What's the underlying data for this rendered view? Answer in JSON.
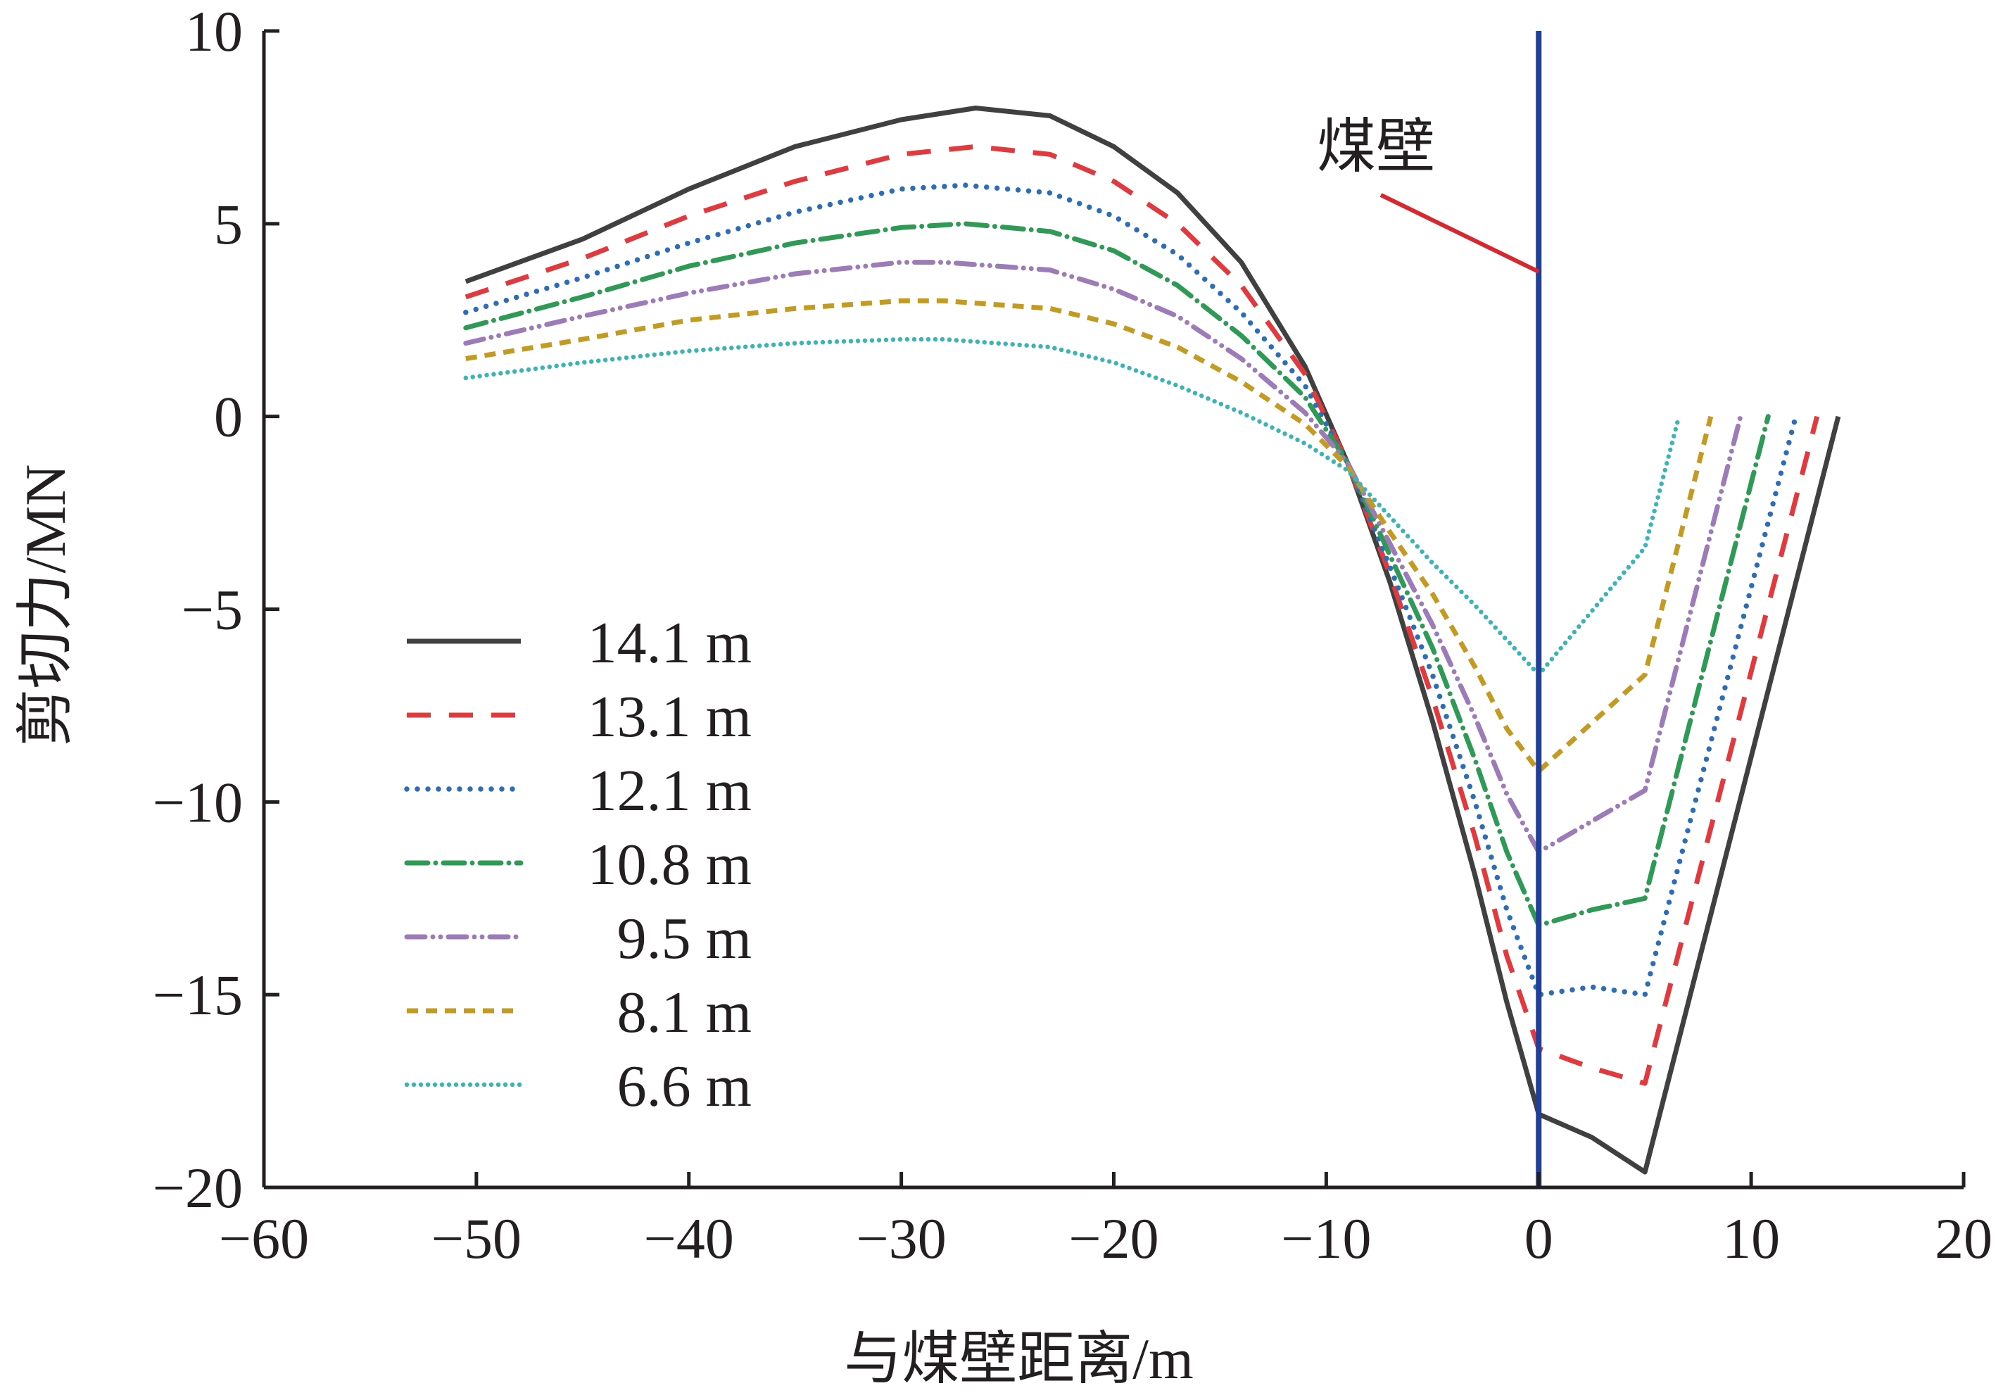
{
  "chart_data": {
    "type": "line",
    "xlabel": "与煤壁距离/m",
    "ylabel": "剪切力/MN",
    "xlim": [
      -60,
      20
    ],
    "ylim": [
      -20,
      10
    ],
    "xticks": [
      -60,
      -50,
      -40,
      -30,
      -20,
      -10,
      0,
      10,
      20
    ],
    "yticks": [
      -20,
      -15,
      -10,
      -5,
      0,
      5,
      10
    ],
    "xtick_labels": [
      "−60",
      "−50",
      "−40",
      "−30",
      "−20",
      "−10",
      "0",
      "10",
      "20"
    ],
    "ytick_labels": [
      "−20",
      "−15",
      "−10",
      "−5",
      "0",
      "5",
      "10"
    ],
    "grid": false,
    "legend_position": "lower-left",
    "annotation": {
      "text": "煤壁",
      "x": 0,
      "color": "#1f3f99",
      "pointer_color": "#d7282f"
    },
    "series": [
      {
        "name": "14.1 m",
        "color": "#404040",
        "dash": "solid",
        "x": [
          -50.5,
          -45,
          -40,
          -35,
          -30,
          -26.5,
          -23,
          -20,
          -17,
          -14,
          -11,
          -9,
          -7,
          -5,
          -3,
          -1.5,
          0,
          2.5,
          5,
          14.1
        ],
        "y": [
          3.5,
          4.6,
          5.9,
          7.0,
          7.7,
          8.0,
          7.8,
          7.0,
          5.8,
          4.0,
          1.3,
          -1.2,
          -4.3,
          -7.9,
          -11.9,
          -15.2,
          -18.1,
          -18.7,
          -19.6,
          0
        ]
      },
      {
        "name": "13.1 m",
        "color": "#e0393e",
        "dash": "dashed",
        "x": [
          -50.5,
          -45,
          -40,
          -35,
          -30,
          -26.5,
          -23,
          -20,
          -17,
          -14,
          -11,
          -9,
          -7,
          -5,
          -3,
          -1.5,
          0,
          2.5,
          5,
          13.1
        ],
        "y": [
          3.1,
          4.1,
          5.2,
          6.1,
          6.8,
          7.0,
          6.8,
          6.1,
          5.0,
          3.4,
          1.1,
          -1.2,
          -4.1,
          -7.3,
          -10.9,
          -14.0,
          -16.4,
          -16.9,
          -17.3,
          0
        ]
      },
      {
        "name": "12.1 m",
        "color": "#2c6db5",
        "dash": "dotted",
        "x": [
          -50.5,
          -45,
          -40,
          -35,
          -30,
          -27,
          -23,
          -20,
          -17,
          -14,
          -11,
          -9,
          -7,
          -5,
          -3,
          -1.5,
          0,
          2.5,
          5,
          12.1
        ],
        "y": [
          2.7,
          3.6,
          4.5,
          5.3,
          5.9,
          6.0,
          5.8,
          5.2,
          4.2,
          2.7,
          0.8,
          -1.2,
          -3.9,
          -6.7,
          -10.0,
          -12.8,
          -15.0,
          -14.8,
          -15.0,
          0
        ]
      },
      {
        "name": "10.8 m",
        "color": "#2f9a56",
        "dash": "dashdot",
        "x": [
          -50.5,
          -45,
          -40,
          -35,
          -30,
          -27,
          -23,
          -20,
          -17,
          -14,
          -11,
          -9,
          -7,
          -5,
          -3,
          -1.5,
          0,
          2.5,
          5,
          10.8
        ],
        "y": [
          2.3,
          3.1,
          3.9,
          4.5,
          4.9,
          5.0,
          4.8,
          4.3,
          3.4,
          2.1,
          0.5,
          -1.2,
          -3.6,
          -6.0,
          -8.9,
          -11.3,
          -13.2,
          -12.8,
          -12.5,
          0
        ]
      },
      {
        "name": "9.5 m",
        "color": "#9c7bb8",
        "dash": "dashdotdot",
        "x": [
          -50.5,
          -45,
          -40,
          -35,
          -30,
          -28,
          -23,
          -20,
          -17,
          -14,
          -11,
          -9,
          -7,
          -5,
          -3,
          -1.5,
          0,
          5,
          9.5
        ],
        "y": [
          1.9,
          2.6,
          3.2,
          3.7,
          4.0,
          4.0,
          3.8,
          3.3,
          2.6,
          1.5,
          0.1,
          -1.2,
          -3.3,
          -5.4,
          -7.8,
          -9.8,
          -11.3,
          -9.7,
          0
        ]
      },
      {
        "name": "8.1 m",
        "color": "#c39a22",
        "dash": "shortdash",
        "x": [
          -50.5,
          -45,
          -40,
          -35,
          -30,
          -28,
          -23,
          -20,
          -17,
          -14,
          -11,
          -9,
          -7,
          -5,
          -3,
          -1.5,
          0,
          5,
          8.1
        ],
        "y": [
          1.5,
          2.0,
          2.5,
          2.8,
          3.0,
          3.0,
          2.8,
          2.4,
          1.8,
          0.9,
          -0.2,
          -1.3,
          -3.0,
          -4.6,
          -6.5,
          -8.1,
          -9.2,
          -6.7,
          0
        ]
      },
      {
        "name": "6.6 m",
        "color": "#3bb3b8",
        "dash": "densedot",
        "x": [
          -50.5,
          -45,
          -40,
          -35,
          -30,
          -28,
          -23,
          -20,
          -17,
          -14,
          -11,
          -9,
          -7,
          -5,
          -3,
          -1.5,
          0,
          5,
          6.6
        ],
        "y": [
          1.0,
          1.4,
          1.7,
          1.9,
          2.0,
          2.0,
          1.8,
          1.4,
          0.8,
          0.1,
          -0.7,
          -1.4,
          -2.6,
          -3.8,
          -4.9,
          -5.8,
          -6.7,
          -3.4,
          0
        ]
      }
    ]
  }
}
